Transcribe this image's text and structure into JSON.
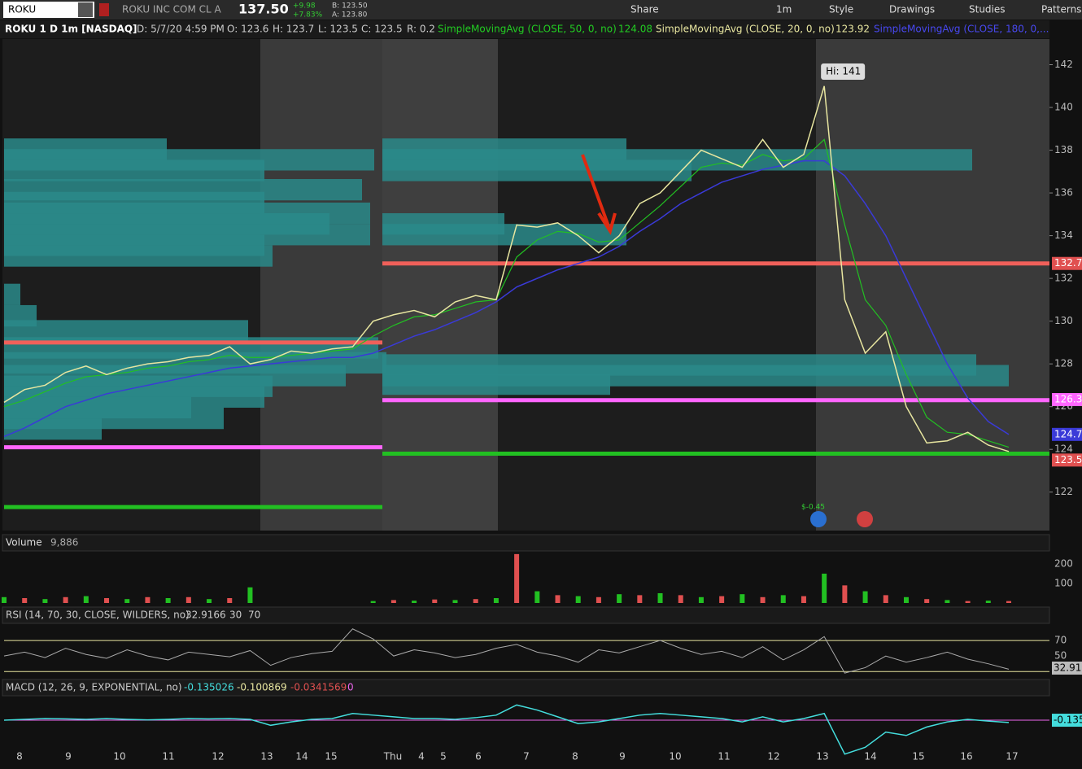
{
  "toolbar": {
    "symbol": "ROKU",
    "company": "ROKU INC COM CL A",
    "last": "137.50",
    "change": "+9.98",
    "change_pct": "+7.83%",
    "bid": "B: 123.50",
    "ask": "A: 123.80",
    "buttons": [
      "Share",
      "1m",
      "Style",
      "Drawings",
      "Studies",
      "Patterns"
    ]
  },
  "info": {
    "title": "ROKU 1 D 1m [NASDAQ]",
    "date": "D: 5/7/20 4:59 PM",
    "open": "O: 123.6",
    "high": "H: 123.7",
    "low": "L: 123.5",
    "close": "C: 123.5",
    "range": "R: 0.2",
    "studies": [
      {
        "name": "SimpleMovingAvg (CLOSE, 50, 0, no)",
        "value": "124.08",
        "color": "#22cc22"
      },
      {
        "name": "SimpleMovingAvg (CLOSE, 20, 0, no)",
        "value": "123.92",
        "color": "#e8e6a0"
      },
      {
        "name": "SimpleMovingAvg (CLOSE, 180, 0,...",
        "color": "#4040e0"
      }
    ]
  },
  "price_panel": {
    "ylim": [
      120.2,
      143.2
    ],
    "yticks": [
      122,
      124,
      126,
      128,
      130,
      132,
      134,
      136,
      138,
      140,
      142
    ],
    "close": [
      126.2,
      126.8,
      127.0,
      127.6,
      127.9,
      127.5,
      127.8,
      128.0,
      128.1,
      128.3,
      128.4,
      128.8,
      128.0,
      128.2,
      128.6,
      128.5,
      128.7,
      128.8,
      130.0,
      130.3,
      130.5,
      130.2,
      130.9,
      131.2,
      131.0,
      134.5,
      134.4,
      134.6,
      134.0,
      133.2,
      134.0,
      135.5,
      136.0,
      137.0,
      138.0,
      137.6,
      137.2,
      138.5,
      137.2,
      137.8,
      141.0,
      131.0,
      128.5,
      129.5,
      126.0,
      124.3,
      124.4,
      124.8,
      124.2,
      123.9
    ],
    "sma50": [
      126.0,
      126.3,
      126.7,
      127.1,
      127.4,
      127.5,
      127.6,
      127.8,
      127.9,
      128.1,
      128.2,
      128.4,
      128.3,
      128.3,
      128.4,
      128.5,
      128.6,
      128.7,
      129.3,
      129.8,
      130.2,
      130.3,
      130.6,
      130.9,
      131.0,
      133.0,
      133.8,
      134.2,
      134.1,
      133.7,
      133.8,
      134.6,
      135.4,
      136.3,
      137.2,
      137.4,
      137.3,
      137.8,
      137.5,
      137.6,
      138.5,
      134.5,
      131.0,
      129.8,
      127.5,
      125.5,
      124.8,
      124.7,
      124.4,
      124.1
    ],
    "sma180": [
      124.6,
      125.0,
      125.5,
      126.0,
      126.3,
      126.6,
      126.8,
      127.0,
      127.2,
      127.4,
      127.6,
      127.8,
      127.9,
      128.0,
      128.1,
      128.2,
      128.3,
      128.3,
      128.5,
      128.9,
      129.3,
      129.6,
      130.0,
      130.4,
      130.9,
      131.6,
      132.0,
      132.4,
      132.7,
      133.0,
      133.5,
      134.2,
      134.8,
      135.5,
      136.0,
      136.5,
      136.8,
      137.1,
      137.3,
      137.5,
      137.5,
      136.8,
      135.5,
      134.0,
      132.0,
      130.0,
      128.0,
      126.4,
      125.3,
      124.7
    ],
    "profile_left": [
      {
        "price": 137.8,
        "volume": 200
      },
      {
        "price": 137.3,
        "volume": 455
      },
      {
        "price": 136.8,
        "volume": 320
      },
      {
        "price": 135.9,
        "volume": 440
      },
      {
        "price": 135.3,
        "volume": 320
      },
      {
        "price": 134.8,
        "volume": 450
      },
      {
        "price": 134.3,
        "volume": 400
      },
      {
        "price": 133.8,
        "volume": 450
      },
      {
        "price": 133.3,
        "volume": 320
      },
      {
        "price": 132.8,
        "volume": 330
      },
      {
        "price": 131,
        "volume": 20
      },
      {
        "price": 130,
        "volume": 40
      },
      {
        "price": 129.3,
        "volume": 300
      },
      {
        "price": 128.5,
        "volume": 460
      },
      {
        "price": 127.8,
        "volume": 470
      },
      {
        "price": 127.2,
        "volume": 420
      },
      {
        "price": 126.7,
        "volume": 330
      },
      {
        "price": 126.2,
        "volume": 320
      },
      {
        "price": 125.7,
        "volume": 230
      },
      {
        "price": 125.2,
        "volume": 270
      },
      {
        "price": 124.7,
        "volume": 120
      }
    ],
    "profile_right": [
      {
        "price": 137.8,
        "volume": 300
      },
      {
        "price": 137.3,
        "volume": 725
      },
      {
        "price": 136.8,
        "volume": 380
      },
      {
        "price": 134.3,
        "volume": 150
      },
      {
        "price": 133.8,
        "volume": 300
      },
      {
        "price": 127.7,
        "volume": 730
      },
      {
        "price": 127.2,
        "volume": 770
      },
      {
        "price": 126.8,
        "volume": 280
      }
    ],
    "levels_left": [
      {
        "price": 129,
        "color": "#f0605a"
      },
      {
        "price": 124.1,
        "color": "#ff66ff"
      },
      {
        "price": 121.3,
        "color": "#22c022"
      }
    ],
    "levels_right": [
      {
        "price": 132.7,
        "color": "#f0605a"
      },
      {
        "price": 126.3,
        "color": "#ff66ff"
      },
      {
        "price": 123.8,
        "color": "#22c022"
      }
    ],
    "badges": [
      {
        "value": 132.7,
        "color": "#e05050"
      },
      {
        "value": 126.33,
        "color": "#ff66ff"
      },
      {
        "value": 124.7,
        "color": "#3a3ad8"
      },
      {
        "value": 123.5,
        "color": "#e05050"
      }
    ],
    "high_label": "Hi: 141",
    "earnings": "$-0.45"
  },
  "volume_panel": {
    "title": "Volume",
    "value": "9,886",
    "ylim": [
      0,
      262
    ],
    "yticks": [
      100,
      200
    ],
    "values": [
      30,
      25,
      20,
      30,
      35,
      25,
      20,
      30,
      25,
      30,
      20,
      25,
      80,
      0,
      0,
      0,
      0,
      0,
      10,
      15,
      12,
      18,
      15,
      20,
      25,
      250,
      60,
      40,
      35,
      30,
      45,
      40,
      50,
      40,
      30,
      35,
      45,
      30,
      40,
      35,
      150,
      90,
      60,
      40,
      30,
      20,
      15,
      10,
      12,
      10
    ]
  },
  "rsi_panel": {
    "title": "RSI (14, 70, 30, CLOSE, WILDERS, no)",
    "value": "32.9166",
    "low": "30",
    "high": "70",
    "ylim": [
      25,
      90
    ],
    "yticks": [
      50,
      70
    ],
    "levels": [
      30,
      70
    ],
    "badge": "32.91",
    "values": [
      50,
      55,
      48,
      60,
      52,
      47,
      58,
      50,
      45,
      55,
      52,
      49,
      57,
      38,
      48,
      53,
      56,
      85,
      72,
      50,
      58,
      54,
      48,
      52,
      60,
      65,
      55,
      50,
      42,
      58,
      54,
      62,
      70,
      60,
      52,
      56,
      48,
      62,
      45,
      58,
      75,
      28,
      35,
      50,
      42,
      48,
      55,
      46,
      40,
      33
    ]
  },
  "macd_panel": {
    "title": "MACD (12, 26, 9, EXPONENTIAL, no)",
    "value": "-0.135026",
    "avg": "-0.100869",
    "diff": "-0.0341569",
    "zero": "0",
    "ylim": [
      -2.4,
      1.3
    ],
    "badge": "-0.135",
    "values": [
      0,
      0.05,
      0.1,
      0.08,
      0.05,
      0.1,
      0.05,
      0.02,
      0.05,
      0.1,
      0.08,
      0.1,
      0.05,
      -0.3,
      -0.1,
      0.05,
      0.1,
      0.4,
      0.3,
      0.2,
      0.1,
      0.1,
      0.05,
      0.15,
      0.3,
      0.9,
      0.6,
      0.2,
      -0.2,
      -0.1,
      0.1,
      0.3,
      0.4,
      0.3,
      0.2,
      0.1,
      -0.1,
      0.2,
      -0.1,
      0.1,
      0.4,
      -2.0,
      -1.6,
      -0.7,
      -0.9,
      -0.4,
      -0.1,
      0.05,
      -0.05,
      -0.135
    ]
  },
  "x_labels": [
    "8",
    "9",
    "10",
    "11",
    "12",
    "13",
    "14",
    "15",
    "Thu",
    "4",
    "5",
    "6",
    "7",
    "8",
    "9",
    "10",
    "11",
    "12",
    "13",
    "14",
    "15",
    "16",
    "17"
  ]
}
